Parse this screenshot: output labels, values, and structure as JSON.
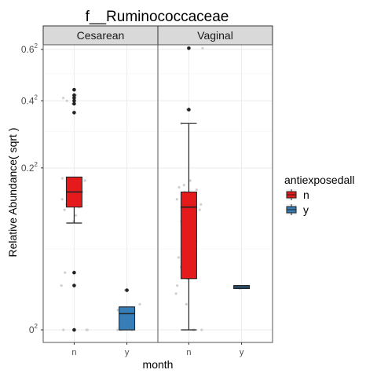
{
  "chart_data": {
    "type": "boxplot",
    "title": "f__Ruminococcaceae",
    "xlabel": "month",
    "ylabel": "Relative Abundance( sqrt )",
    "categories": [
      "n",
      "y"
    ],
    "ylim": [
      0,
      0.62
    ],
    "yticks": [
      {
        "value": 0,
        "base": "0",
        "exp": "2"
      },
      {
        "value": 0.2,
        "base": "0.2",
        "exp": "2"
      },
      {
        "value": 0.4,
        "base": "0.4",
        "exp": "2"
      },
      {
        "value": 0.6,
        "base": "0.6",
        "exp": "2"
      }
    ],
    "grid": true,
    "legend": {
      "title": "antiexposedall",
      "position": "right",
      "items": [
        {
          "label": "n",
          "color": "#e41a1c"
        },
        {
          "label": "y",
          "color": "#377eb8"
        }
      ]
    },
    "panels": [
      {
        "label": "Cesarean",
        "boxes": [
          {
            "category": "n",
            "group": "n",
            "q1": 0.115,
            "median": 0.145,
            "q3": 0.178,
            "whisker_low": 0.087,
            "whisker_high": 0.178,
            "outliers": [
              0.44,
              0.42,
              0.41,
              0.4,
              0.39,
              0.36,
              0.025,
              0.015,
              0.0
            ]
          },
          {
            "category": "y",
            "group": "y",
            "q1": 0.0,
            "median": 0.002,
            "q3": 0.004,
            "whisker_low": 0.0,
            "whisker_high": 0.004,
            "outliers": [
              0.012
            ]
          }
        ],
        "jitter": [
          {
            "category": "n",
            "values": [
              0.44,
              0.42,
              0.41,
              0.4,
              0.39,
              0.36,
              0.175,
              0.17,
              0.165,
              0.16,
              0.15,
              0.145,
              0.14,
              0.13,
              0.125,
              0.12,
              0.115,
              0.11,
              0.1,
              0.09,
              0.025,
              0.015,
              0.0,
              0.0,
              0.0
            ]
          },
          {
            "category": "y",
            "values": [
              0.012,
              0.005,
              0.003,
              0.002,
              0.001,
              0.0,
              0.0,
              0.0
            ]
          }
        ]
      },
      {
        "label": "Vaginal",
        "boxes": [
          {
            "category": "n",
            "group": "n",
            "q1": 0.02,
            "median": 0.115,
            "q3": 0.145,
            "whisker_low": 0.0,
            "whisker_high": 0.325,
            "outliers": [
              0.605,
              0.37
            ]
          },
          {
            "category": "y",
            "group": "y",
            "q1": 0.013,
            "median": 0.014,
            "q3": 0.015,
            "whisker_low": 0.013,
            "whisker_high": 0.015,
            "outliers": []
          }
        ],
        "jitter": [
          {
            "category": "n",
            "values": [
              0.605,
              0.37,
              0.325,
              0.17,
              0.16,
              0.155,
              0.15,
              0.145,
              0.14,
              0.13,
              0.12,
              0.115,
              0.11,
              0.1,
              0.09,
              0.08,
              0.07,
              0.06,
              0.05,
              0.04,
              0.03,
              0.02,
              0.015,
              0.01,
              0.005,
              0.0,
              0.0,
              0.0
            ]
          },
          {
            "category": "y",
            "values": [
              0.014,
              0.013
            ]
          }
        ]
      }
    ]
  }
}
